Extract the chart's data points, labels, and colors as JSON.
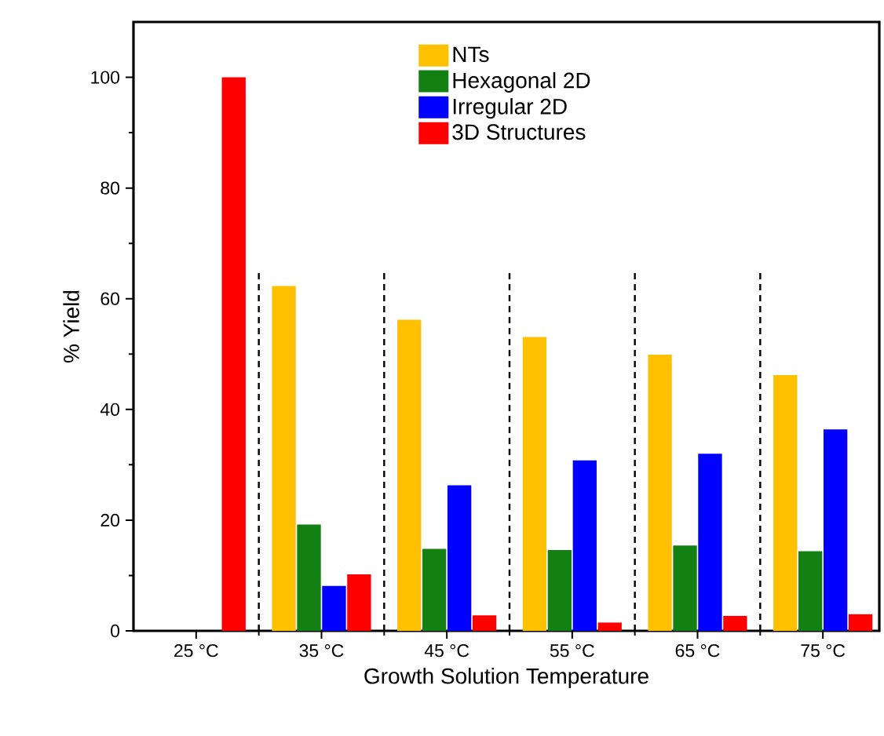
{
  "chart_data": {
    "type": "bar",
    "xlabel": "Growth Solution Temperature",
    "ylabel": "% Yield",
    "categories": [
      "25 °C",
      "35 °C",
      "45 °C",
      "55 °C",
      "65 °C",
      "75 °C"
    ],
    "series": [
      {
        "name": "NTs",
        "color": "#ffc000",
        "values": [
          null,
          62.3,
          56.2,
          53.1,
          49.9,
          46.2
        ]
      },
      {
        "name": "Hexagonal 2D",
        "color": "#138013",
        "values": [
          null,
          19.2,
          14.8,
          14.6,
          15.4,
          14.4
        ]
      },
      {
        "name": "Irregular 2D",
        "color": "#0000ff",
        "values": [
          null,
          8.1,
          26.3,
          30.8,
          32.0,
          36.4
        ]
      },
      {
        "name": "3D Structures",
        "color": "#ff0000",
        "values": [
          100,
          10.2,
          2.8,
          1.5,
          2.7,
          3.0
        ]
      }
    ],
    "ylim": [
      0,
      110
    ],
    "yticks": [
      0,
      20,
      40,
      60,
      80,
      100
    ],
    "legend": "top",
    "grid": false
  }
}
